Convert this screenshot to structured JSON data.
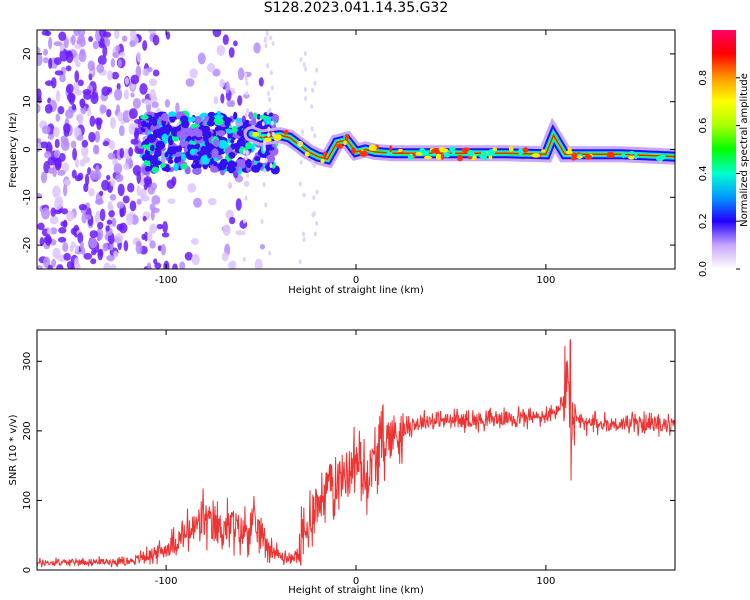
{
  "title": "S128.2023.041.14.35.G32",
  "chart_data": [
    {
      "type": "heatmap",
      "xlabel": "Height of straight line (km)",
      "ylabel": "Frequency (Hz)",
      "xlim": [
        -168,
        168
      ],
      "ylim": [
        -25,
        25
      ],
      "xticks": [
        -100,
        0,
        100
      ],
      "xtick_labels": [
        "-100",
        "0",
        "100"
      ],
      "yticks": [
        -20,
        -10,
        0,
        10,
        20
      ],
      "ytick_labels": [
        "-20",
        "-10",
        "0",
        "10",
        "20"
      ],
      "colorbar": {
        "label": "Normalized spectral amplitude",
        "range": [
          0,
          1
        ],
        "ticks": [
          0.0,
          0.2,
          0.4,
          0.6,
          0.8
        ],
        "tick_labels": [
          "0.0",
          "0.2",
          "0.4",
          "0.6",
          "0.8"
        ]
      },
      "ridge": {
        "x": [
          -60,
          -50,
          -40,
          -35,
          -30,
          -25,
          -20,
          -15,
          -10,
          -5,
          0,
          5,
          10,
          20,
          40,
          80,
          100,
          104,
          110,
          140,
          168
        ],
        "y": [
          4,
          2.5,
          3,
          2.5,
          1,
          -0.5,
          -1.5,
          -2,
          1.5,
          2,
          -0.5,
          0,
          -0.5,
          -0.8,
          -0.8,
          -0.8,
          -1,
          3,
          -1,
          -1,
          -1.5
        ]
      }
    },
    {
      "type": "line",
      "xlabel": "Height of straight line (km)",
      "ylabel": "SNR (10 * v/v)",
      "xlim": [
        -168,
        168
      ],
      "ylim": [
        0,
        345
      ],
      "xticks": [
        -100,
        0,
        100
      ],
      "xtick_labels": [
        "-100",
        "0",
        "100"
      ],
      "yticks": [
        0,
        100,
        200,
        300
      ],
      "ytick_labels": [
        "0",
        "100",
        "200",
        "300"
      ],
      "color": "#ee3333",
      "series": [
        {
          "x": [
            -168,
            -140,
            -120,
            -110,
            -100,
            -95,
            -90,
            -85,
            -80,
            -75,
            -70,
            -65,
            -60,
            -55,
            -50,
            -45,
            -40,
            -35,
            -30,
            -25,
            -22,
            -20,
            -18,
            -15,
            -10,
            -5,
            0,
            5,
            10,
            15,
            20,
            25,
            30,
            40,
            60,
            80,
            100,
            105,
            108,
            112,
            113,
            114,
            116,
            120,
            130,
            150,
            168
          ],
          "y": [
            10,
            12,
            12,
            20,
            30,
            40,
            50,
            60,
            75,
            60,
            60,
            65,
            55,
            65,
            55,
            30,
            20,
            15,
            25,
            60,
            100,
            90,
            110,
            120,
            130,
            140,
            160,
            130,
            160,
            185,
            195,
            200,
            210,
            215,
            215,
            218,
            220,
            225,
            240,
            270,
            160,
            210,
            215,
            210,
            210,
            210,
            208
          ]
        }
      ]
    }
  ]
}
